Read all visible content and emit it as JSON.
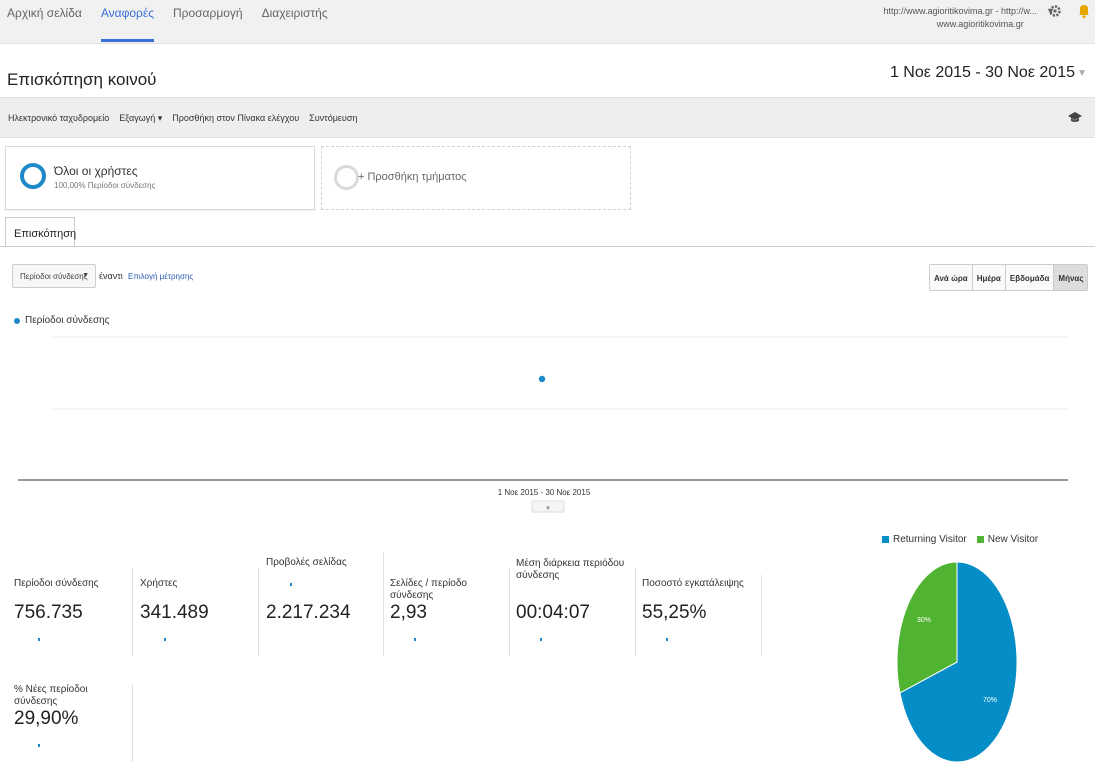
{
  "nav": {
    "tabs": [
      {
        "label": "Αρχική σελίδα",
        "active": false
      },
      {
        "label": "Αναφορές",
        "active": true
      },
      {
        "label": "Προσαρμογή",
        "active": false
      },
      {
        "label": "Διαχειριστής",
        "active": false
      }
    ],
    "account_line1": "http://www.agioritikovima.gr - http://w...",
    "account_line2": "www.agioritikovima.gr",
    "accent": "#3a6fd8"
  },
  "header": {
    "title": "Επισκόπηση κοινού",
    "date_range": "1 Νοε 2015 - 30 Νοε 2015"
  },
  "toolbar": {
    "email": "Ηλεκτρονικό ταχυδρομείο",
    "export": "Εξαγωγή ▾",
    "add_dashboard": "Προσθήκη στον Πίνακα ελέγχου",
    "shortcut": "Συντόμευση"
  },
  "segments": {
    "all_users_title": "Όλοι οι χρήστες",
    "all_users_sub": "100,00% Περίοδοι σύνδεσης",
    "add_segment": "+ Προσθήκη τμήματος"
  },
  "overview": {
    "tab_label": "Επισκόπηση",
    "metric_select": "Περίοδοι σύνδεσης",
    "versus": "έναντι",
    "choose_metric": "Επιλογή μέτρησης",
    "granularity": [
      "Ανά ώρα",
      "Ημέρα",
      "Εβδομάδα",
      "Μήνας"
    ],
    "granularity_selected": "Μήνας"
  },
  "chart_data": [
    {
      "type": "line",
      "series": [
        {
          "name": "Περίοδοι σύνδεσης",
          "values": [
            756735
          ]
        }
      ],
      "x": [
        "1 Νοε 2015 - 30 Νοε 2015"
      ],
      "color": "#1e88c9"
    },
    {
      "type": "pie",
      "categories": [
        "Returning Visitor",
        "New Visitor"
      ],
      "values": [
        70,
        30
      ],
      "labels": [
        "70%",
        "30%"
      ],
      "colors": [
        "#058dc7",
        "#50b432"
      ]
    }
  ],
  "scorecards": [
    {
      "label": "Περίοδοι σύνδεσης",
      "value": "756.735"
    },
    {
      "label": "Χρήστες",
      "value": "341.489"
    },
    {
      "label": "Προβολές σελίδας",
      "value": "2.217.234"
    },
    {
      "label": "Σελίδες / περίοδο σύνδεσης",
      "value": "2,93"
    },
    {
      "label": "Μέση διάρκεια περιόδου σύνδεσης",
      "value": "00:04:07"
    },
    {
      "label": "Ποσοστό εγκατάλειψης",
      "value": "55,25%"
    },
    {
      "label": "% Νέες περίοδοι σύνδεσης",
      "value": "29,90%"
    }
  ]
}
